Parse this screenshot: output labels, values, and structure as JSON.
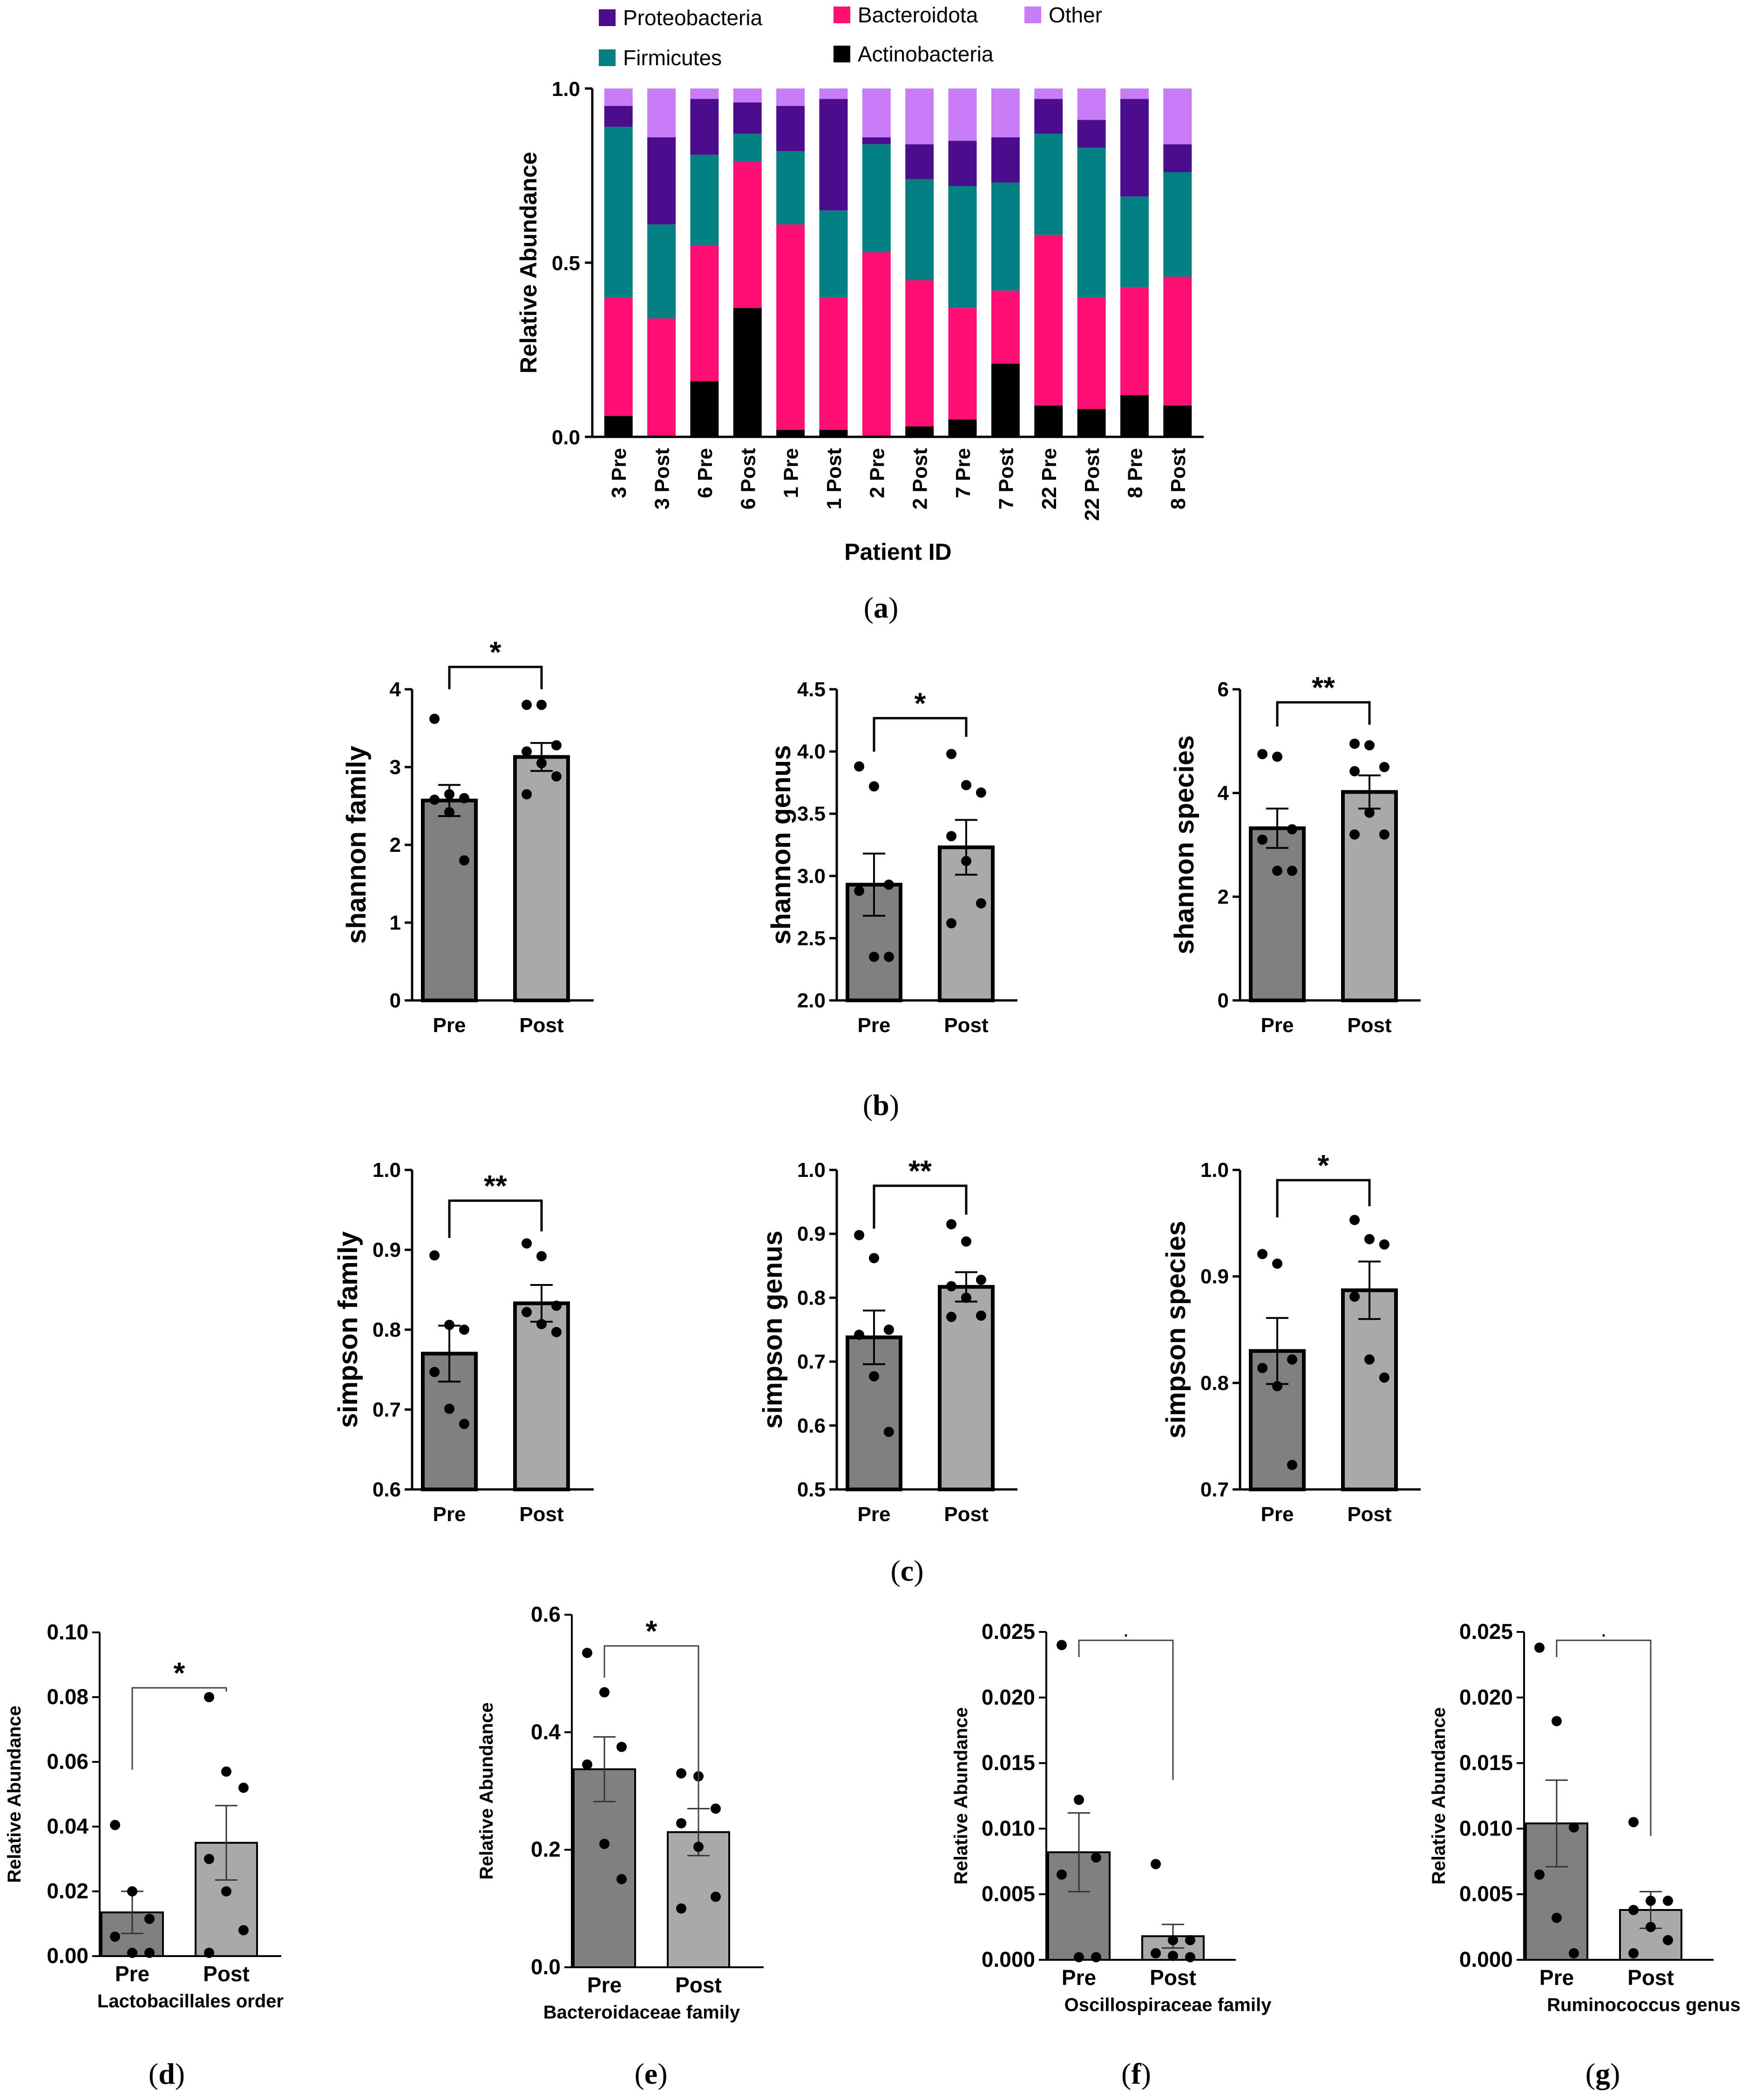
{
  "colors": {
    "Proteobacteria": "#4b0d8c",
    "Firmicutes": "#008080",
    "Bacteroidota": "#ff0f73",
    "Actinobacteria": "#000000",
    "Other": "#c87cf6",
    "pre_bar": "#808080",
    "post_bar": "#a9a9a9"
  },
  "chart_data": [
    {
      "id": "a",
      "caption": "a",
      "type": "bar",
      "stacked": true,
      "xlabel": "Patient ID",
      "ylabel": "Relative Abundance",
      "ylim": [
        0,
        1
      ],
      "yticks": [
        "0.0",
        "0.5",
        "1.0"
      ],
      "legend": [
        "Proteobacteria",
        "Firmicutes",
        "Bacteroidota",
        "Actinobacteria",
        "Other"
      ],
      "categories": [
        "3 Pre",
        "3 Post",
        "6 Pre",
        "6 Post",
        "1 Pre",
        "1 Post",
        "2 Pre",
        "2 Post",
        "7 Pre",
        "7 Post",
        "22 Pre",
        "22 Post",
        "8 Pre",
        "8 Post"
      ],
      "series": [
        {
          "name": "Actinobacteria",
          "values": [
            0.06,
            0.0,
            0.16,
            0.37,
            0.02,
            0.02,
            0.0,
            0.03,
            0.05,
            0.21,
            0.09,
            0.08,
            0.12,
            0.09
          ]
        },
        {
          "name": "Bacteroidota",
          "values": [
            0.34,
            0.34,
            0.39,
            0.42,
            0.59,
            0.38,
            0.53,
            0.42,
            0.32,
            0.21,
            0.49,
            0.32,
            0.31,
            0.37
          ]
        },
        {
          "name": "Firmicutes",
          "values": [
            0.49,
            0.27,
            0.26,
            0.08,
            0.21,
            0.25,
            0.31,
            0.29,
            0.35,
            0.31,
            0.29,
            0.43,
            0.26,
            0.3
          ]
        },
        {
          "name": "Proteobacteria",
          "values": [
            0.06,
            0.25,
            0.16,
            0.09,
            0.13,
            0.32,
            0.02,
            0.1,
            0.13,
            0.13,
            0.1,
            0.08,
            0.28,
            0.08
          ]
        },
        {
          "name": "Other",
          "values": [
            0.05,
            0.14,
            0.03,
            0.04,
            0.05,
            0.03,
            0.14,
            0.16,
            0.15,
            0.14,
            0.03,
            0.09,
            0.03,
            0.16
          ]
        }
      ]
    },
    {
      "id": "b1",
      "caption": "b",
      "type": "bar",
      "categories": [
        "Pre",
        "Post"
      ],
      "ylabel": "shannon family",
      "xlabel": "",
      "ylim": [
        0,
        4
      ],
      "yticks": [
        "0",
        "1",
        "2",
        "3",
        "4"
      ],
      "ytick_values": [
        0,
        1,
        2,
        3,
        4
      ],
      "values": [
        2.57,
        3.13
      ],
      "sem": [
        0.2,
        0.18
      ],
      "points": [
        [
          3.62,
          2.65,
          2.6,
          2.58,
          2.42,
          1.8
        ],
        [
          3.8,
          3.8,
          3.28,
          3.2,
          3.05,
          2.88,
          2.65
        ]
      ],
      "significance": "*"
    },
    {
      "id": "b2",
      "caption": "b",
      "type": "bar",
      "categories": [
        "Pre",
        "Post"
      ],
      "ylabel": "shannon genus",
      "xlabel": "",
      "ylim": [
        2.0,
        4.5
      ],
      "yticks": [
        "2.0",
        "2.5",
        "3.0",
        "3.5",
        "4.0",
        "4.5"
      ],
      "ytick_values": [
        2.0,
        2.5,
        3.0,
        3.5,
        4.0,
        4.5
      ],
      "values": [
        2.93,
        3.23
      ],
      "sem": [
        0.25,
        0.22
      ],
      "points": [
        [
          3.88,
          3.72,
          2.93,
          2.88,
          2.35,
          2.35
        ],
        [
          3.98,
          3.73,
          3.67,
          3.32,
          3.12,
          2.78,
          2.62
        ]
      ],
      "significance": "*"
    },
    {
      "id": "b3",
      "caption": "b",
      "type": "bar",
      "categories": [
        "Pre",
        "Post"
      ],
      "ylabel": "shannon species",
      "xlabel": "",
      "ylim": [
        0,
        6
      ],
      "yticks": [
        "0",
        "2",
        "4",
        "6"
      ],
      "ytick_values": [
        0,
        2,
        4,
        6
      ],
      "values": [
        3.32,
        4.02
      ],
      "sem": [
        0.38,
        0.32
      ],
      "points": [
        [
          4.75,
          4.7,
          3.3,
          3.1,
          2.5,
          2.5
        ],
        [
          4.95,
          4.92,
          4.5,
          4.42,
          3.62,
          3.2,
          3.2
        ]
      ],
      "significance": "**"
    },
    {
      "id": "c1",
      "caption": "c",
      "type": "bar",
      "categories": [
        "Pre",
        "Post"
      ],
      "ylabel": "simpson family",
      "xlabel": "",
      "ylim": [
        0.6,
        1.0
      ],
      "yticks": [
        "0.6",
        "0.7",
        "0.8",
        "0.9",
        "1.0"
      ],
      "ytick_values": [
        0.6,
        0.7,
        0.8,
        0.9,
        1.0
      ],
      "values": [
        0.77,
        0.833
      ],
      "sem": [
        0.035,
        0.023
      ],
      "points": [
        [
          0.893,
          0.806,
          0.8,
          0.747,
          0.701,
          0.682
        ],
        [
          0.908,
          0.892,
          0.83,
          0.822,
          0.807,
          0.797
        ]
      ],
      "significance": "**"
    },
    {
      "id": "c2",
      "caption": "c",
      "type": "bar",
      "categories": [
        "Pre",
        "Post"
      ],
      "ylabel": "simpson genus",
      "xlabel": "",
      "ylim": [
        0.5,
        1.0
      ],
      "yticks": [
        "0.5",
        "0.6",
        "0.7",
        "0.8",
        "0.9",
        "1.0"
      ],
      "ytick_values": [
        0.5,
        0.6,
        0.7,
        0.8,
        0.9,
        1.0
      ],
      "values": [
        0.738,
        0.817
      ],
      "sem": [
        0.042,
        0.023
      ],
      "points": [
        [
          0.898,
          0.862,
          0.75,
          0.742,
          0.677,
          0.59
        ],
        [
          0.915,
          0.888,
          0.828,
          0.818,
          0.8,
          0.772,
          0.77
        ]
      ],
      "significance": "**"
    },
    {
      "id": "c3",
      "caption": "c",
      "type": "bar",
      "categories": [
        "Pre",
        "Post"
      ],
      "ylabel": "simpson species",
      "xlabel": "",
      "ylim": [
        0.7,
        1.0
      ],
      "yticks": [
        "0.7",
        "0.8",
        "0.9",
        "1.0"
      ],
      "ytick_values": [
        0.7,
        0.8,
        0.9,
        1.0
      ],
      "values": [
        0.83,
        0.887
      ],
      "sem": [
        0.031,
        0.027
      ],
      "points": [
        [
          0.921,
          0.912,
          0.822,
          0.814,
          0.797,
          0.723
        ],
        [
          0.953,
          0.935,
          0.93,
          0.881,
          0.822,
          0.805
        ]
      ],
      "significance": "*"
    },
    {
      "id": "d",
      "caption": "d",
      "type": "bar",
      "categories": [
        "Pre",
        "Post"
      ],
      "ylabel": "Relative Abundance",
      "xlabel": "Lactobacillales order",
      "ylim": [
        0,
        0.1
      ],
      "yticks": [
        "0.00",
        "0.02",
        "0.04",
        "0.06",
        "0.08",
        "0.10"
      ],
      "ytick_values": [
        0,
        0.02,
        0.04,
        0.06,
        0.08,
        0.1
      ],
      "values": [
        0.0135,
        0.035
      ],
      "sem": [
        0.0065,
        0.0115
      ],
      "points": [
        [
          0.0405,
          0.02,
          0.0115,
          0.006,
          0.001,
          0.001
        ],
        [
          0.08,
          0.057,
          0.052,
          0.03,
          0.02,
          0.008,
          0.001
        ]
      ],
      "significance": "*"
    },
    {
      "id": "e",
      "caption": "e",
      "type": "bar",
      "categories": [
        "Pre",
        "Post"
      ],
      "ylabel": "Relative Abundance",
      "xlabel": "Bacteroidaceae family",
      "ylim": [
        0,
        0.6
      ],
      "yticks": [
        "0.0",
        "0.2",
        "0.4",
        "0.6"
      ],
      "ytick_values": [
        0,
        0.2,
        0.4,
        0.6
      ],
      "values": [
        0.337,
        0.23
      ],
      "sem": [
        0.055,
        0.04
      ],
      "points": [
        [
          0.535,
          0.468,
          0.375,
          0.345,
          0.21,
          0.15
        ],
        [
          0.33,
          0.325,
          0.27,
          0.245,
          0.205,
          0.12,
          0.1
        ]
      ],
      "significance": "*"
    },
    {
      "id": "f",
      "caption": "f",
      "type": "bar",
      "categories": [
        "Pre",
        "Post"
      ],
      "ylabel": "Relative Abundance",
      "xlabel": "Oscillospiraceae family",
      "ylim": [
        0,
        0.025
      ],
      "yticks": [
        "0.000",
        "0.005",
        "0.010",
        "0.015",
        "0.020",
        "0.025"
      ],
      "ytick_values": [
        0,
        0.005,
        0.01,
        0.015,
        0.02,
        0.025
      ],
      "values": [
        0.0082,
        0.0018
      ],
      "sem": [
        0.003,
        0.0009
      ],
      "points": [
        [
          0.024,
          0.0122,
          0.0078,
          0.0065,
          0.0002,
          0.0002
        ],
        [
          0.0073,
          0.0015,
          0.0015,
          0.0005,
          0.0003,
          0.0002
        ]
      ],
      "significance": "."
    },
    {
      "id": "g",
      "caption": "g",
      "type": "bar",
      "categories": [
        "Pre",
        "Post"
      ],
      "ylabel": "Relative Abundance",
      "xlabel": "Ruminococcus genus",
      "ylim": [
        0,
        0.025
      ],
      "yticks": [
        "0.000",
        "0.005",
        "0.010",
        "0.015",
        "0.020",
        "0.025"
      ],
      "ytick_values": [
        0,
        0.005,
        0.01,
        0.015,
        0.02,
        0.025
      ],
      "values": [
        0.0104,
        0.0038
      ],
      "sem": [
        0.0033,
        0.0014
      ],
      "points": [
        [
          0.0238,
          0.0182,
          0.0101,
          0.0065,
          0.0032,
          0.0005
        ],
        [
          0.0105,
          0.0045,
          0.0045,
          0.0038,
          0.0025,
          0.0015,
          0.0005
        ]
      ],
      "significance": "."
    }
  ]
}
